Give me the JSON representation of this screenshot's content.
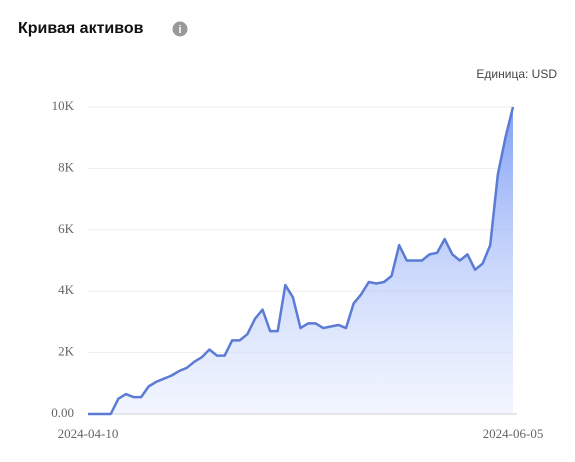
{
  "chart_data": {
    "type": "area",
    "title": "Кривая активов",
    "unit_label": "Единица: USD",
    "x": [
      "2024-04-10",
      "2024-04-11",
      "2024-04-12",
      "2024-04-13",
      "2024-04-14",
      "2024-04-15",
      "2024-04-16",
      "2024-04-17",
      "2024-04-18",
      "2024-04-19",
      "2024-04-20",
      "2024-04-21",
      "2024-04-22",
      "2024-04-23",
      "2024-04-24",
      "2024-04-25",
      "2024-04-26",
      "2024-04-27",
      "2024-04-28",
      "2024-04-29",
      "2024-04-30",
      "2024-05-01",
      "2024-05-02",
      "2024-05-03",
      "2024-05-04",
      "2024-05-05",
      "2024-05-06",
      "2024-05-07",
      "2024-05-08",
      "2024-05-09",
      "2024-05-10",
      "2024-05-11",
      "2024-05-12",
      "2024-05-13",
      "2024-05-14",
      "2024-05-15",
      "2024-05-16",
      "2024-05-17",
      "2024-05-18",
      "2024-05-19",
      "2024-05-20",
      "2024-05-21",
      "2024-05-22",
      "2024-05-23",
      "2024-05-24",
      "2024-05-25",
      "2024-05-26",
      "2024-05-27",
      "2024-05-28",
      "2024-05-29",
      "2024-05-30",
      "2024-05-31",
      "2024-06-01",
      "2024-06-02",
      "2024-06-03",
      "2024-06-04",
      "2024-06-05"
    ],
    "values": [
      0,
      0,
      0,
      0,
      500,
      650,
      550,
      550,
      900,
      1050,
      1150,
      1250,
      1400,
      1500,
      1700,
      1850,
      2100,
      1900,
      1900,
      2400,
      2400,
      2600,
      3100,
      3400,
      2700,
      2700,
      4200,
      3800,
      2800,
      2950,
      2950,
      2800,
      2850,
      2900,
      2800,
      3600,
      3900,
      4300,
      4250,
      4300,
      4500,
      5500,
      5000,
      5000,
      5000,
      5200,
      5250,
      5700,
      5200,
      5000,
      5200,
      4700,
      4900,
      5500,
      7800,
      9000,
      10000
    ],
    "color": "#5b7bd5",
    "ylim": [
      0,
      10000
    ],
    "yticks": [
      {
        "value": 0,
        "label": "0.00"
      },
      {
        "value": 2000,
        "label": "2K"
      },
      {
        "value": 4000,
        "label": "4K"
      },
      {
        "value": 6000,
        "label": "6K"
      },
      {
        "value": 8000,
        "label": "8K"
      },
      {
        "value": 10000,
        "label": "10K"
      }
    ],
    "grid": true
  }
}
